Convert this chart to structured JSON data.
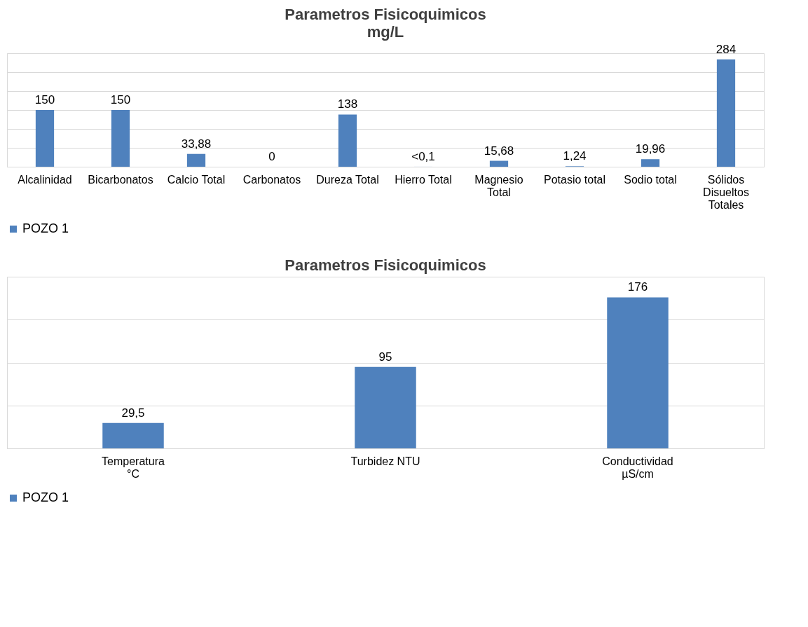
{
  "chart_data": [
    {
      "type": "bar",
      "title": "Parametros Fisicoquimicos",
      "subtitle": "mg/L",
      "categories": [
        "Alcalinidad",
        "Bicarbonatos",
        "Calcio Total",
        "Carbonatos",
        "Dureza Total",
        "Hierro Total",
        "Magnesio Total",
        "Potasio total",
        "Sodio total",
        "Sólidos Disueltos Totales"
      ],
      "series": [
        {
          "name": "POZO 1",
          "color": "#4f81bd",
          "values": [
            150,
            150,
            33.88,
            0,
            138,
            0.1,
            15.68,
            1.24,
            19.96,
            284
          ],
          "value_labels": [
            "150",
            "150",
            "33,88",
            "0",
            "138",
            "<0,1",
            "15,68",
            "1,24",
            "19,96",
            "284"
          ]
        }
      ],
      "ylim": [
        0,
        300
      ],
      "yticks": [
        {
          "value": 0,
          "label": null
        },
        {
          "value": 50,
          "label": null
        },
        {
          "value": 100,
          "label": null
        },
        {
          "value": 150,
          "label": null
        },
        {
          "value": 200,
          "label": null
        },
        {
          "value": 250,
          "label": null
        },
        {
          "value": 300,
          "label": null
        }
      ],
      "tick_labels": "x",
      "grid": "y",
      "legend": "bottom"
    },
    {
      "type": "bar",
      "title": "Parametros Fisicoquimicos",
      "categories": [
        "Temperatura °C",
        "Turbidez NTU",
        "Conductividad µS/cm"
      ],
      "series": [
        {
          "name": "POZO 1",
          "color": "#4f81bd",
          "values": [
            29.5,
            95,
            176
          ],
          "value_labels": [
            "29,5",
            "95",
            "176"
          ]
        }
      ],
      "ylim": [
        0,
        200
      ],
      "yticks": [
        {
          "value": 0,
          "label": null
        },
        {
          "value": 50,
          "label": null
        },
        {
          "value": 100,
          "label": null
        },
        {
          "value": 150,
          "label": null
        },
        {
          "value": 200,
          "label": null
        }
      ],
      "tick_labels": "x",
      "grid": "y",
      "legend": "bottom"
    }
  ]
}
